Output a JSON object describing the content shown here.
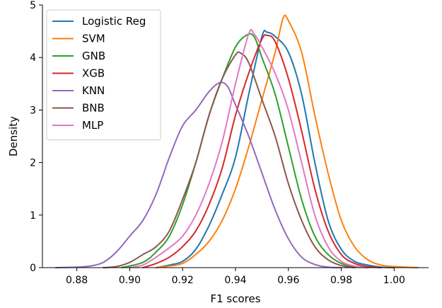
{
  "chart_data": {
    "type": "line",
    "subtype": "kde-density",
    "title": "",
    "xlabel": "F1 scores",
    "ylabel": "Density",
    "xlim": [
      0.867,
      1.013
    ],
    "ylim": [
      0,
      5
    ],
    "x_ticks": [
      "0.88",
      "0.90",
      "0.92",
      "0.94",
      "0.96",
      "0.98",
      "1.00"
    ],
    "y_ticks": [
      "0",
      "1",
      "2",
      "3",
      "4",
      "5"
    ],
    "grid": false,
    "legend_position": "top-left",
    "series": [
      {
        "name": "Logistic Reg",
        "color": "#1f77b4",
        "points": [
          [
            0.91,
            0
          ],
          [
            0.915,
            0.05
          ],
          [
            0.92,
            0.12
          ],
          [
            0.925,
            0.35
          ],
          [
            0.93,
            0.8
          ],
          [
            0.935,
            1.4
          ],
          [
            0.94,
            2.1
          ],
          [
            0.945,
            3.3
          ],
          [
            0.95,
            4.4
          ],
          [
            0.952,
            4.48
          ],
          [
            0.955,
            4.4
          ],
          [
            0.96,
            4.1
          ],
          [
            0.965,
            3.3
          ],
          [
            0.97,
            2.0
          ],
          [
            0.975,
            0.9
          ],
          [
            0.98,
            0.35
          ],
          [
            0.985,
            0.12
          ],
          [
            0.99,
            0.05
          ],
          [
            0.995,
            0.01
          ],
          [
            1.0,
            0
          ]
        ]
      },
      {
        "name": "SVM",
        "color": "#ff7f0e",
        "points": [
          [
            0.91,
            0
          ],
          [
            0.915,
            0.03
          ],
          [
            0.92,
            0.08
          ],
          [
            0.925,
            0.25
          ],
          [
            0.93,
            0.5
          ],
          [
            0.935,
            0.9
          ],
          [
            0.94,
            1.5
          ],
          [
            0.945,
            2.3
          ],
          [
            0.95,
            3.2
          ],
          [
            0.955,
            4.1
          ],
          [
            0.958,
            4.75
          ],
          [
            0.96,
            4.7
          ],
          [
            0.965,
            4.1
          ],
          [
            0.97,
            2.9
          ],
          [
            0.975,
            1.8
          ],
          [
            0.98,
            0.9
          ],
          [
            0.985,
            0.4
          ],
          [
            0.99,
            0.15
          ],
          [
            0.995,
            0.05
          ],
          [
            1.0,
            0.02
          ],
          [
            1.009,
            0
          ]
        ]
      },
      {
        "name": "GNB",
        "color": "#2ca02c",
        "points": [
          [
            0.897,
            0
          ],
          [
            0.905,
            0.1
          ],
          [
            0.91,
            0.3
          ],
          [
            0.915,
            0.6
          ],
          [
            0.92,
            1.2
          ],
          [
            0.925,
            2.0
          ],
          [
            0.93,
            2.9
          ],
          [
            0.935,
            3.6
          ],
          [
            0.94,
            4.2
          ],
          [
            0.944,
            4.42
          ],
          [
            0.947,
            4.4
          ],
          [
            0.95,
            4.0
          ],
          [
            0.955,
            3.3
          ],
          [
            0.96,
            2.3
          ],
          [
            0.965,
            1.3
          ],
          [
            0.97,
            0.6
          ],
          [
            0.975,
            0.25
          ],
          [
            0.98,
            0.08
          ],
          [
            0.985,
            0.02
          ],
          [
            0.99,
            0
          ]
        ]
      },
      {
        "name": "XGB",
        "color": "#d62728",
        "points": [
          [
            0.905,
            0
          ],
          [
            0.91,
            0.08
          ],
          [
            0.915,
            0.2
          ],
          [
            0.92,
            0.4
          ],
          [
            0.925,
            0.7
          ],
          [
            0.93,
            1.2
          ],
          [
            0.935,
            1.9
          ],
          [
            0.94,
            2.9
          ],
          [
            0.945,
            3.7
          ],
          [
            0.95,
            4.35
          ],
          [
            0.952,
            4.42
          ],
          [
            0.955,
            4.3
          ],
          [
            0.96,
            3.6
          ],
          [
            0.965,
            2.6
          ],
          [
            0.97,
            1.5
          ],
          [
            0.975,
            0.7
          ],
          [
            0.98,
            0.25
          ],
          [
            0.985,
            0.08
          ],
          [
            0.99,
            0.02
          ],
          [
            0.995,
            0
          ]
        ]
      },
      {
        "name": "KNN",
        "color": "#9467bd",
        "points": [
          [
            0.872,
            0
          ],
          [
            0.88,
            0.01
          ],
          [
            0.885,
            0.03
          ],
          [
            0.89,
            0.1
          ],
          [
            0.895,
            0.3
          ],
          [
            0.9,
            0.6
          ],
          [
            0.905,
            0.9
          ],
          [
            0.91,
            1.4
          ],
          [
            0.915,
            2.1
          ],
          [
            0.92,
            2.7
          ],
          [
            0.925,
            3.0
          ],
          [
            0.93,
            3.35
          ],
          [
            0.934,
            3.52
          ],
          [
            0.937,
            3.45
          ],
          [
            0.94,
            3.1
          ],
          [
            0.945,
            2.5
          ],
          [
            0.95,
            1.8
          ],
          [
            0.955,
            1.1
          ],
          [
            0.96,
            0.55
          ],
          [
            0.965,
            0.2
          ],
          [
            0.97,
            0.06
          ],
          [
            0.975,
            0.01
          ],
          [
            0.98,
            0
          ]
        ]
      },
      {
        "name": "BNB",
        "color": "#8c564b",
        "points": [
          [
            0.89,
            0
          ],
          [
            0.895,
            0.02
          ],
          [
            0.9,
            0.1
          ],
          [
            0.905,
            0.25
          ],
          [
            0.91,
            0.4
          ],
          [
            0.915,
            0.7
          ],
          [
            0.92,
            1.3
          ],
          [
            0.925,
            2.0
          ],
          [
            0.93,
            2.9
          ],
          [
            0.935,
            3.6
          ],
          [
            0.94,
            4.05
          ],
          [
            0.942,
            4.08
          ],
          [
            0.945,
            3.9
          ],
          [
            0.95,
            3.2
          ],
          [
            0.955,
            2.5
          ],
          [
            0.96,
            1.6
          ],
          [
            0.965,
            0.9
          ],
          [
            0.97,
            0.4
          ],
          [
            0.975,
            0.15
          ],
          [
            0.98,
            0.04
          ],
          [
            0.985,
            0
          ]
        ]
      },
      {
        "name": "MLP",
        "color": "#e377c2",
        "points": [
          [
            0.9,
            0
          ],
          [
            0.905,
            0.05
          ],
          [
            0.91,
            0.2
          ],
          [
            0.915,
            0.38
          ],
          [
            0.92,
            0.6
          ],
          [
            0.925,
            1.0
          ],
          [
            0.93,
            1.6
          ],
          [
            0.935,
            2.4
          ],
          [
            0.94,
            3.5
          ],
          [
            0.945,
            4.45
          ],
          [
            0.947,
            4.45
          ],
          [
            0.95,
            4.2
          ],
          [
            0.955,
            3.7
          ],
          [
            0.96,
            3.0
          ],
          [
            0.965,
            2.0
          ],
          [
            0.97,
            1.0
          ],
          [
            0.975,
            0.4
          ],
          [
            0.98,
            0.12
          ],
          [
            0.985,
            0.03
          ],
          [
            0.99,
            0
          ]
        ]
      }
    ]
  }
}
